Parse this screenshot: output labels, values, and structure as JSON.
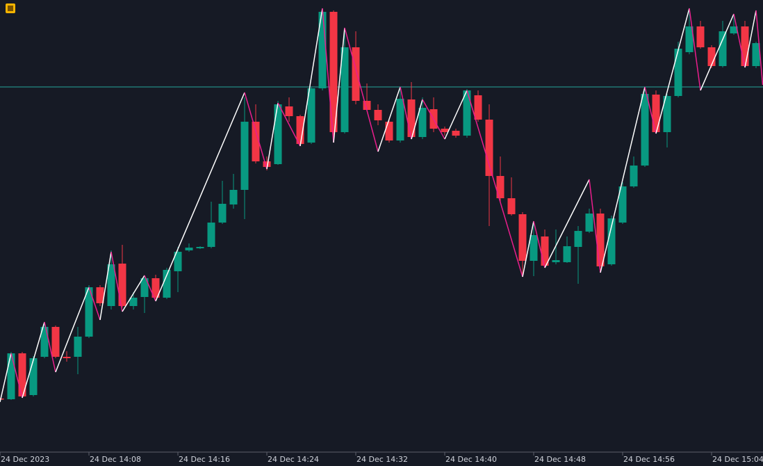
{
  "chart_data": {
    "type": "candlestick",
    "x": [
      0,
      1,
      2,
      3,
      4,
      5,
      6,
      7,
      8,
      9,
      10,
      11,
      12,
      13,
      14,
      15,
      16,
      17,
      18,
      19,
      20,
      21,
      22,
      23,
      24,
      25,
      26,
      27,
      28,
      29,
      30,
      31,
      32,
      33,
      34,
      35,
      36,
      37,
      38,
      39,
      40,
      41,
      42,
      43,
      44,
      45,
      46,
      47,
      48,
      49,
      50,
      51,
      52,
      53,
      54,
      55,
      56,
      57,
      58,
      59,
      60,
      61,
      62,
      63,
      64,
      65,
      66,
      67,
      68
    ],
    "open": [
      77,
      76,
      142,
      82,
      137,
      180,
      137,
      137,
      166,
      237,
      210,
      271,
      210,
      223,
      250,
      222,
      260,
      290,
      293,
      295,
      330,
      356,
      377,
      475,
      418,
      414,
      497,
      483,
      445,
      523,
      633,
      460,
      582,
      505,
      492,
      475,
      448,
      507,
      453,
      493,
      465,
      462,
      455,
      513,
      478,
      397,
      365,
      342,
      275,
      310,
      273,
      273,
      295,
      317,
      343,
      270,
      330,
      382,
      412,
      514,
      460,
      512,
      575,
      612,
      582,
      555,
      602,
      612,
      555
    ],
    "high": [
      78,
      144,
      144,
      138,
      187,
      182,
      145,
      180,
      240,
      240,
      290,
      298,
      230,
      254,
      255,
      265,
      295,
      300,
      296,
      360,
      390,
      400,
      510,
      500,
      425,
      505,
      510,
      485,
      525,
      638,
      635,
      610,
      605,
      530,
      500,
      480,
      525,
      532,
      510,
      510,
      468,
      465,
      522,
      520,
      500,
      425,
      395,
      345,
      332,
      320,
      320,
      310,
      325,
      350,
      350,
      340,
      388,
      425,
      525,
      520,
      515,
      590,
      635,
      620,
      585,
      620,
      628,
      620,
      590
    ],
    "low": [
      75,
      75,
      78,
      80,
      135,
      135,
      130,
      112,
      164,
      210,
      205,
      208,
      205,
      200,
      218,
      220,
      230,
      288,
      292,
      293,
      328,
      350,
      335,
      415,
      405,
      413,
      475,
      440,
      443,
      520,
      445,
      458,
      500,
      490,
      470,
      445,
      445,
      450,
      450,
      460,
      455,
      452,
      452,
      475,
      325,
      360,
      340,
      252,
      253,
      265,
      270,
      272,
      242,
      315,
      258,
      268,
      328,
      380,
      410,
      458,
      438,
      510,
      572,
      580,
      552,
      553,
      600,
      553,
      552
    ],
    "close": [
      76,
      142,
      80,
      135,
      180,
      137,
      135,
      166,
      237,
      214,
      270,
      210,
      222,
      250,
      222,
      262,
      288,
      294,
      295,
      330,
      357,
      377,
      475,
      418,
      410,
      500,
      483,
      443,
      523,
      633,
      460,
      582,
      505,
      492,
      477,
      448,
      508,
      453,
      495,
      465,
      460,
      455,
      520,
      478,
      397,
      365,
      342,
      275,
      312,
      268,
      276,
      296,
      318,
      343,
      267,
      336,
      382,
      412,
      515,
      460,
      512,
      580,
      612,
      582,
      555,
      605,
      612,
      555,
      588
    ],
    "up_color": "#089981",
    "down_color": "#f23645",
    "zigzag": {
      "x": [
        0,
        1,
        2,
        4,
        5,
        8,
        9,
        10,
        11,
        13,
        14,
        22,
        24,
        25,
        27,
        29,
        30,
        31,
        34,
        36,
        37,
        38,
        40,
        42,
        47,
        48,
        49,
        53,
        54,
        58,
        59,
        62,
        63,
        66,
        67,
        68,
        68.6
      ],
      "values": [
        72,
        142,
        78,
        187,
        115,
        237,
        190,
        288,
        202,
        254,
        217,
        517,
        407,
        502,
        440,
        638,
        445,
        610,
        432,
        525,
        450,
        507,
        450,
        520,
        252,
        332,
        265,
        392,
        258,
        525,
        458,
        638,
        520,
        630,
        553,
        635,
        528
      ],
      "up_color": "#ffffff",
      "down_color": "#e91e8c"
    },
    "hline": 525,
    "hline_color": "#26a69a",
    "xlim": [
      0,
      68.625
    ],
    "ylim": [
      0,
      650
    ],
    "xticks": [
      {
        "value": 0,
        "label": "24 Dec 2023"
      },
      {
        "value": 8,
        "label": "24 Dec 14:08"
      },
      {
        "value": 16,
        "label": "24 Dec 14:16"
      },
      {
        "value": 24,
        "label": "24 Dec 14:24"
      },
      {
        "value": 32,
        "label": "24 Dec 14:32"
      },
      {
        "value": 40,
        "label": "24 Dec 14:40"
      },
      {
        "value": 48,
        "label": "24 Dec 14:48"
      },
      {
        "value": 56,
        "label": "24 Dec 14:56"
      },
      {
        "value": 64,
        "label": "24 Dec 15:04"
      }
    ]
  }
}
